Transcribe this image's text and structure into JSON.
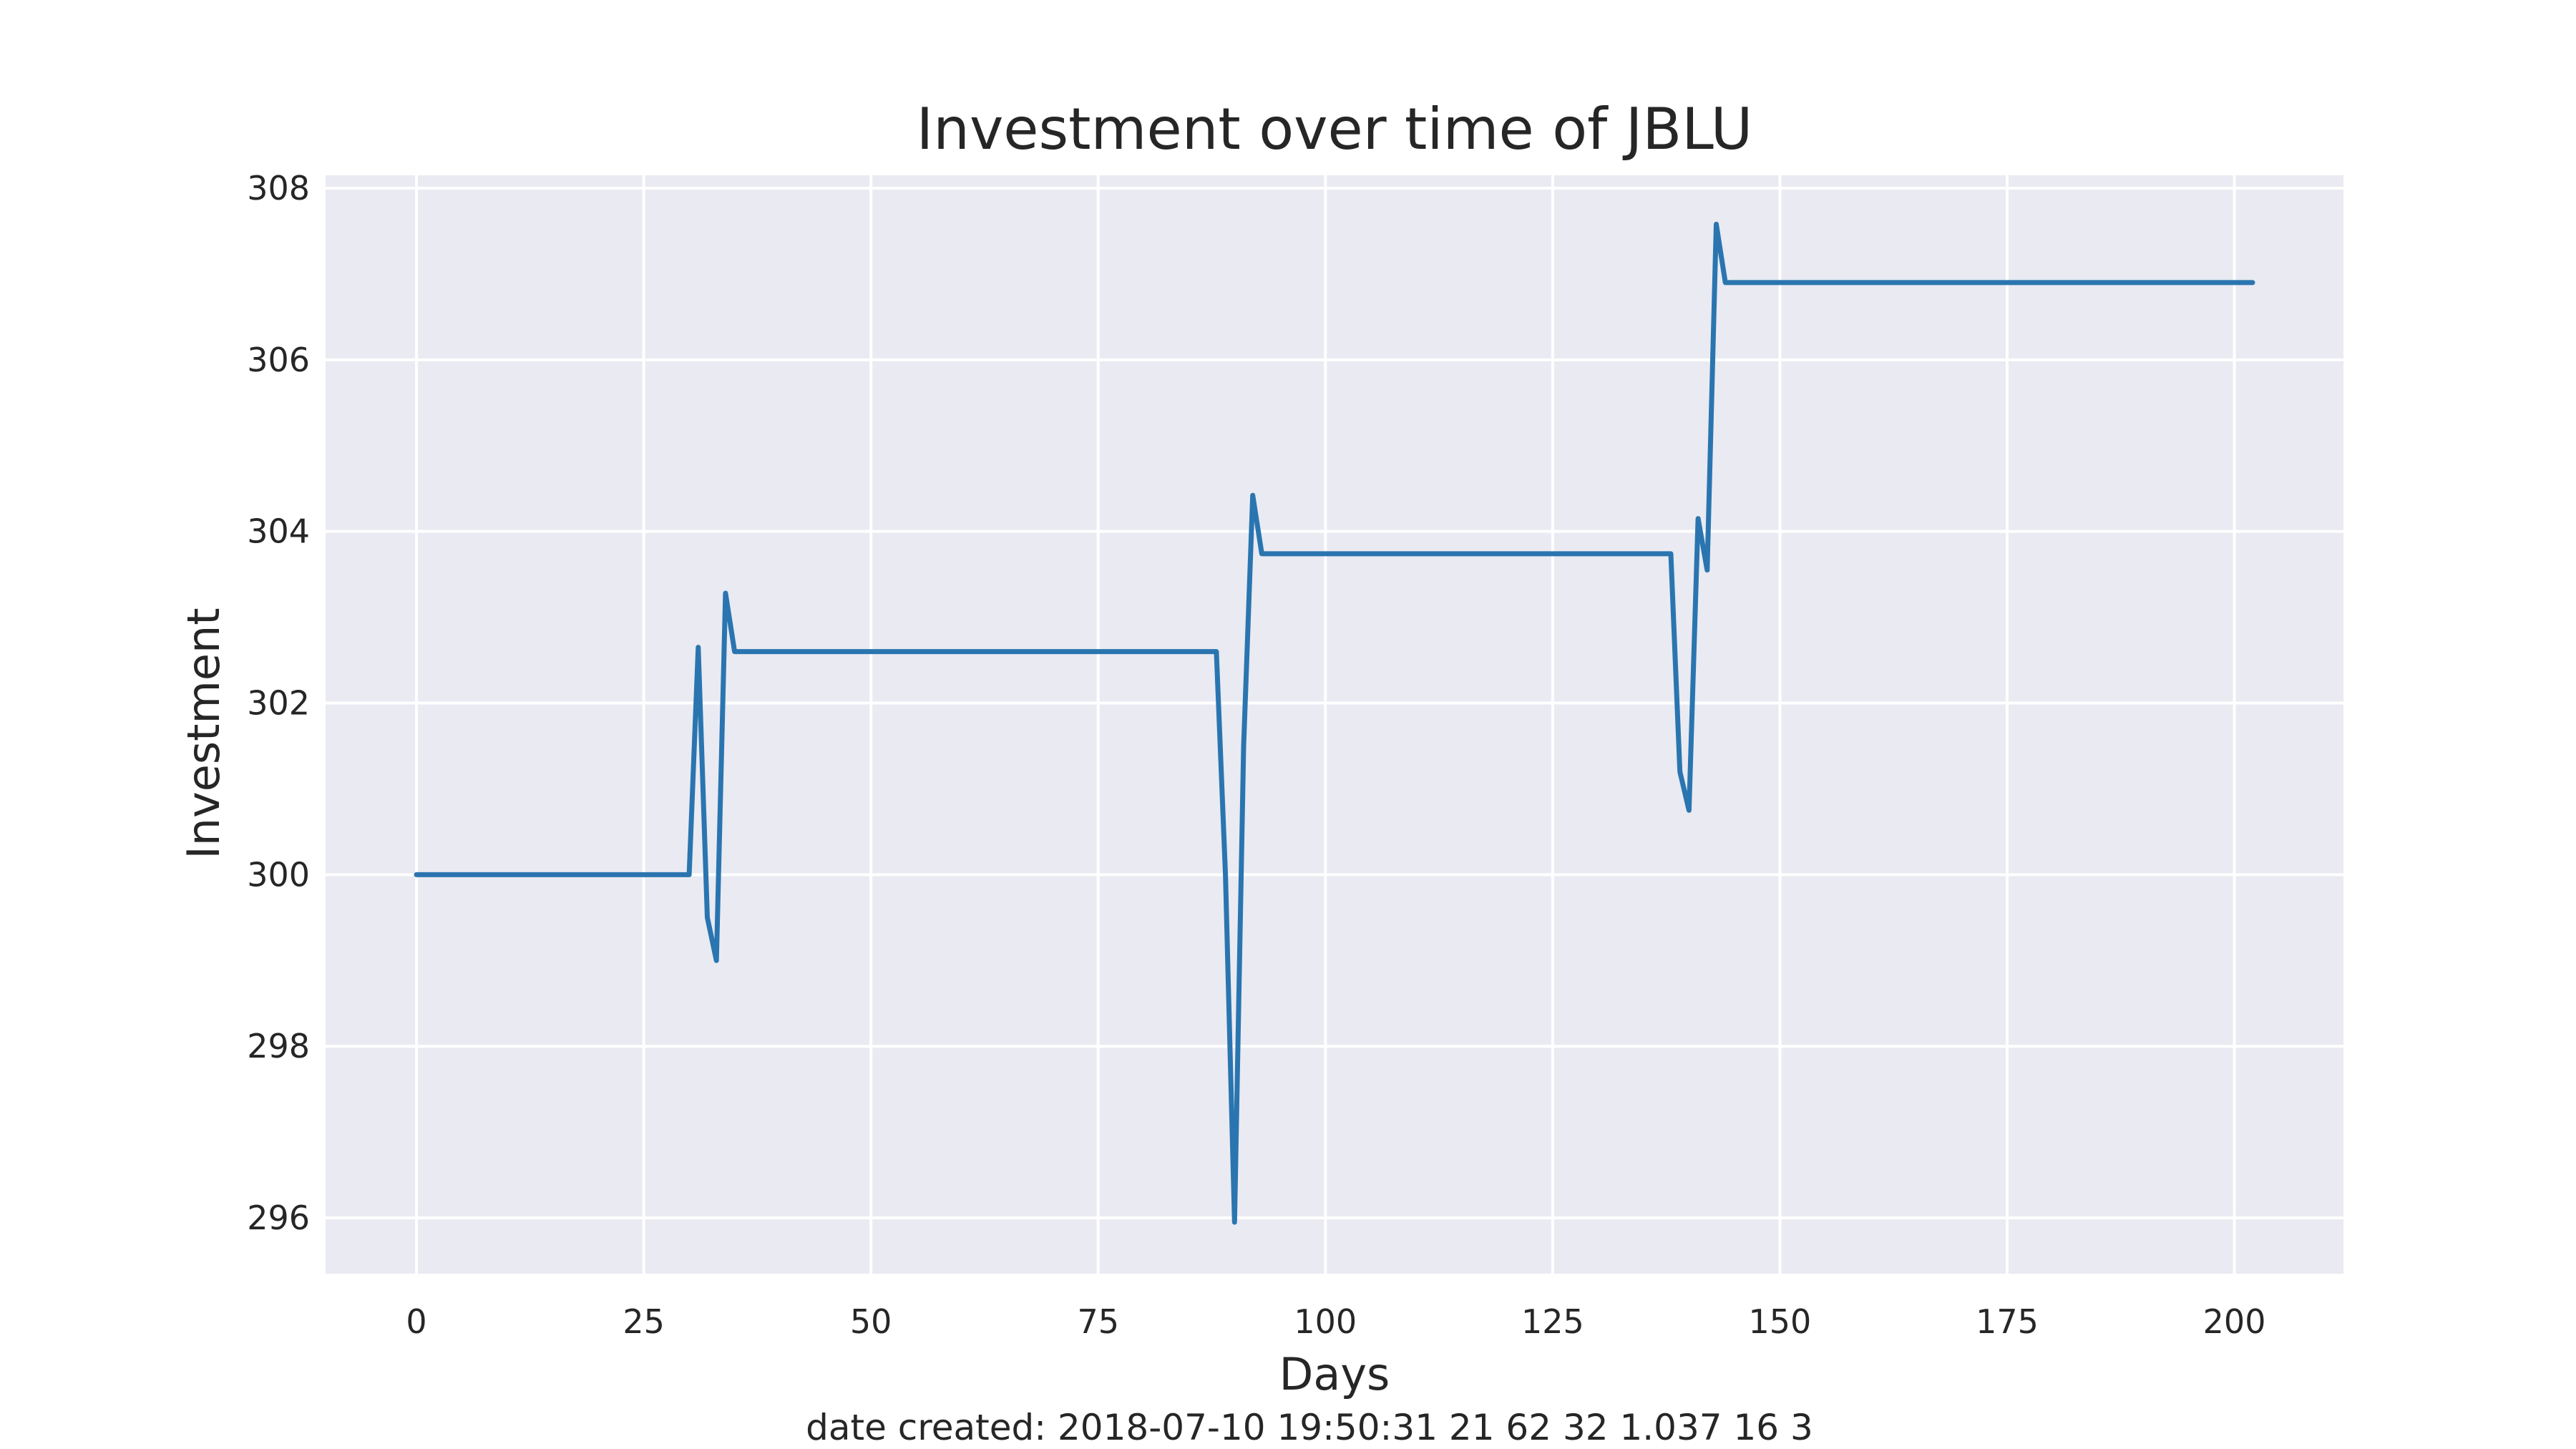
{
  "chart_data": {
    "type": "line",
    "title": "Investment over time of JBLU",
    "xlabel": "Days",
    "ylabel": "Investment",
    "footnote": "date created: 2018-07-10 19:50:31 21 62 32 1.037 16 3",
    "xlim": [
      -10,
      212
    ],
    "ylim": [
      295.35,
      308.15
    ],
    "x_ticks": [
      0,
      25,
      50,
      75,
      100,
      125,
      150,
      175,
      200
    ],
    "y_ticks": [
      296,
      298,
      300,
      302,
      304,
      306,
      308
    ],
    "grid": true,
    "legend": "none",
    "colors": {
      "background": "#eaeaf2",
      "grid": "#ffffff",
      "line": "#2a75b0"
    },
    "series": [
      {
        "x": [
          0,
          30,
          31,
          32,
          33,
          34,
          35,
          88,
          89,
          90,
          91,
          92,
          93,
          138,
          139,
          140,
          141,
          142,
          143,
          144,
          202
        ],
        "values": [
          300,
          300,
          302.65,
          299.5,
          299.0,
          303.28,
          302.6,
          302.6,
          300.0,
          295.95,
          301.5,
          304.42,
          303.74,
          303.74,
          301.2,
          300.75,
          304.15,
          303.55,
          307.58,
          306.9,
          306.9
        ]
      }
    ]
  }
}
